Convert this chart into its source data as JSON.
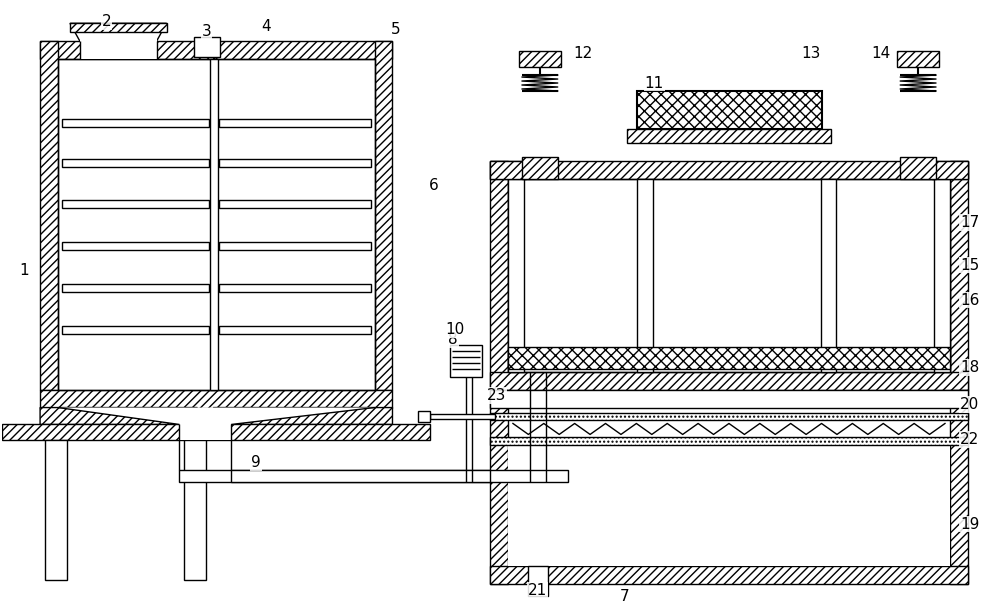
{
  "bg_color": "#ffffff",
  "line_color": "#000000",
  "fig_width": 10.0,
  "fig_height": 6.16,
  "lw": 1.0,
  "lw2": 1.5
}
